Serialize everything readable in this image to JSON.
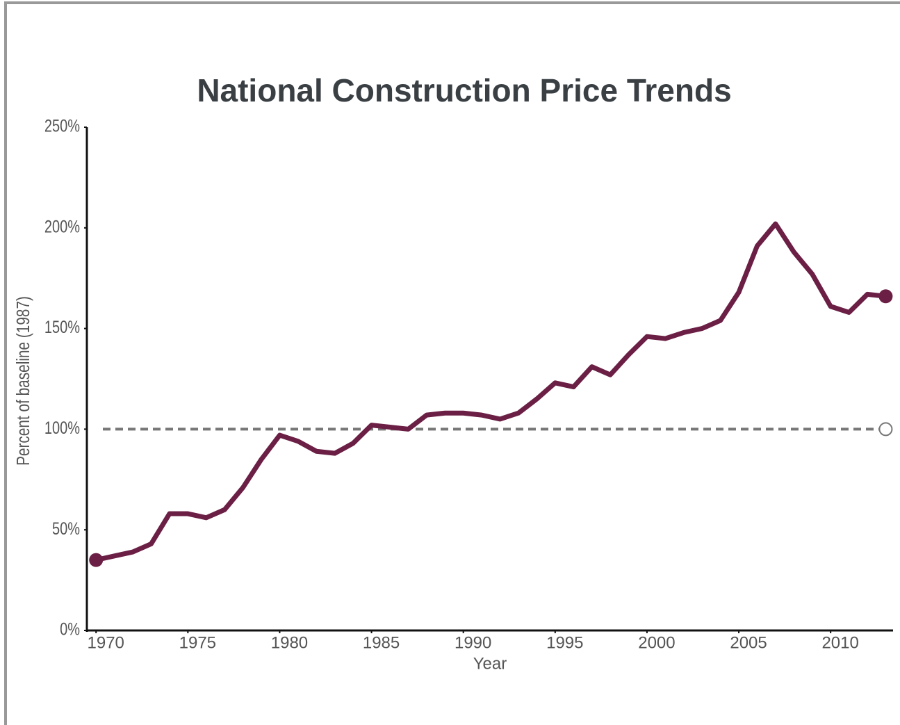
{
  "chart_data": {
    "type": "line",
    "title": "National Construction Price Trends",
    "x_label": "Year",
    "y_label": "Percent of baseline (1987)",
    "x": [
      1970,
      1971,
      1972,
      1973,
      1974,
      1975,
      1976,
      1977,
      1978,
      1979,
      1980,
      1981,
      1982,
      1983,
      1984,
      1985,
      1986,
      1987,
      1988,
      1989,
      1990,
      1991,
      1992,
      1993,
      1994,
      1995,
      1996,
      1997,
      1998,
      1999,
      2000,
      2001,
      2002,
      2003,
      2004,
      2005,
      2006,
      2007,
      2008,
      2009,
      2010,
      2011,
      2012,
      2013
    ],
    "series": [
      {
        "color": "#6b1f45",
        "values": [
          35,
          37,
          39,
          43,
          58,
          58,
          56,
          60,
          71,
          85,
          97,
          94,
          89,
          88,
          93,
          102,
          101,
          100,
          107,
          108,
          108,
          107,
          105,
          108,
          115,
          123,
          121,
          131,
          127,
          137,
          146,
          145,
          148,
          150,
          154,
          168,
          191,
          202,
          188,
          177,
          161,
          158,
          167,
          166
        ]
      }
    ],
    "baseline": 100,
    "baseline_color": "#777777",
    "xlim": [
      1969.5,
      2013.4
    ],
    "ylim": [
      0,
      250
    ],
    "xticks": [
      1970,
      1975,
      1980,
      1985,
      1990,
      1995,
      2000,
      2005,
      2010
    ],
    "yticks": [
      {
        "value": 0,
        "label": "0%"
      },
      {
        "value": 50,
        "label": "50%"
      },
      {
        "value": 100,
        "label": "100%"
      },
      {
        "value": 150,
        "label": "150%"
      },
      {
        "value": 200,
        "label": "200%"
      },
      {
        "value": 250,
        "label": "250%"
      }
    ],
    "grid": false
  }
}
